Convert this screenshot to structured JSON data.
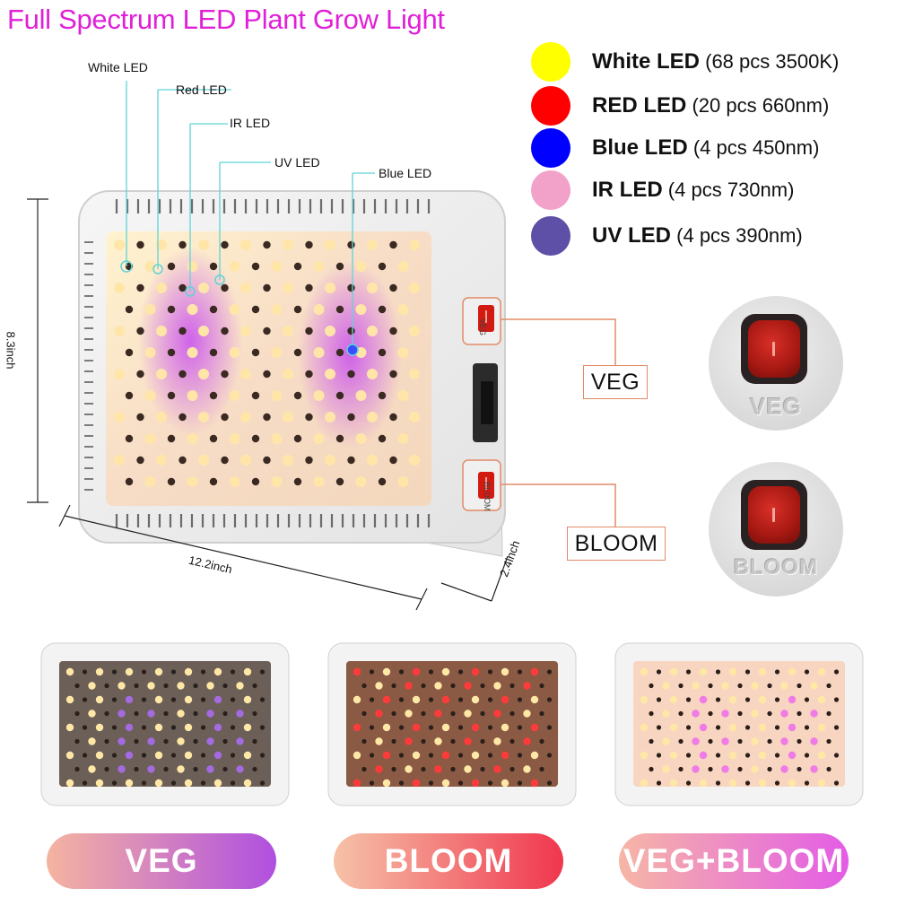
{
  "title": "Full Spectrum LED Plant Grow Light",
  "legend": [
    {
      "name": "White LED",
      "detail": "(68 pcs 3500K)",
      "color": "#ffff00"
    },
    {
      "name": "RED LED",
      "detail": "(20 pcs 660nm)",
      "color": "#ff0000"
    },
    {
      "name": "Blue LED",
      "detail": "(4 pcs 450nm)",
      "color": "#0000ff"
    },
    {
      "name": "IR LED",
      "detail": "(4 pcs 730nm)",
      "color": "#f2a1c8"
    },
    {
      "name": "UV LED",
      "detail": "(4 pcs 390nm)",
      "color": "#5d50a6"
    }
  ],
  "callouts": {
    "white": "White LED",
    "red": "Red LED",
    "ir": "IR LED",
    "uv": "UV LED",
    "blue": "Blue LED"
  },
  "dimensions": {
    "height": "8.3inch",
    "width": "12.2inch",
    "depth": "2.4inch"
  },
  "switches": {
    "veg_label": "VEG",
    "bloom_label": "BLOOM",
    "veg_switch_text": "VEG",
    "bloom_switch_text": "BLOOM",
    "zoom_veg_text": "VEG",
    "zoom_bloom_text": "BLOOM"
  },
  "modes": [
    {
      "label": "VEG",
      "gradient_from": "#f5b4a0",
      "gradient_to": "#b04fe0"
    },
    {
      "label": "BLOOM",
      "gradient_from": "#f6c2a8",
      "gradient_to": "#f0364e"
    },
    {
      "label": "VEG+BLOOM",
      "gradient_from": "#f6b6a6",
      "gradient_to": "#e35ce6"
    }
  ],
  "accent_color": "#e020d8",
  "callout_line_color": "#5fd3d8",
  "box_border_color": "#e28a68"
}
